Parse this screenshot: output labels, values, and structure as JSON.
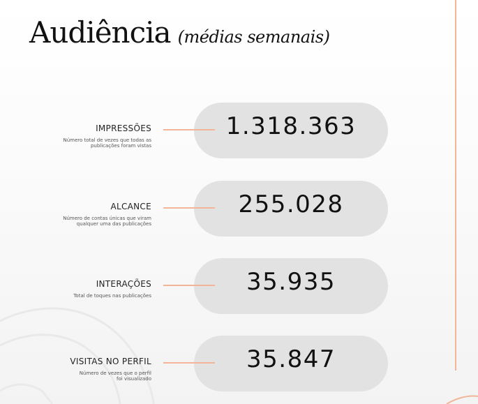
{
  "header": {
    "title": "Audiência",
    "subtitle": "(médias semanais)"
  },
  "metrics": [
    {
      "label": "IMPRESSÕES",
      "description": "Número total de vezes que todas as publicações foram vistas",
      "value": "1.318.363"
    },
    {
      "label": "ALCANCE",
      "description": "Número de contas únicas que viram qualquer uma das publicações",
      "value": "255.028"
    },
    {
      "label": "INTERAÇÕES",
      "description": "Total de toques nas publicações",
      "value": "35.935"
    },
    {
      "label": "VISITAS NO PERFIL",
      "description": "Número de vezes que o perfil foi visualizado",
      "value": "35.847"
    }
  ],
  "colors": {
    "accent": "#f2b598",
    "pill": "#e2e2e2",
    "text": "#111111"
  }
}
